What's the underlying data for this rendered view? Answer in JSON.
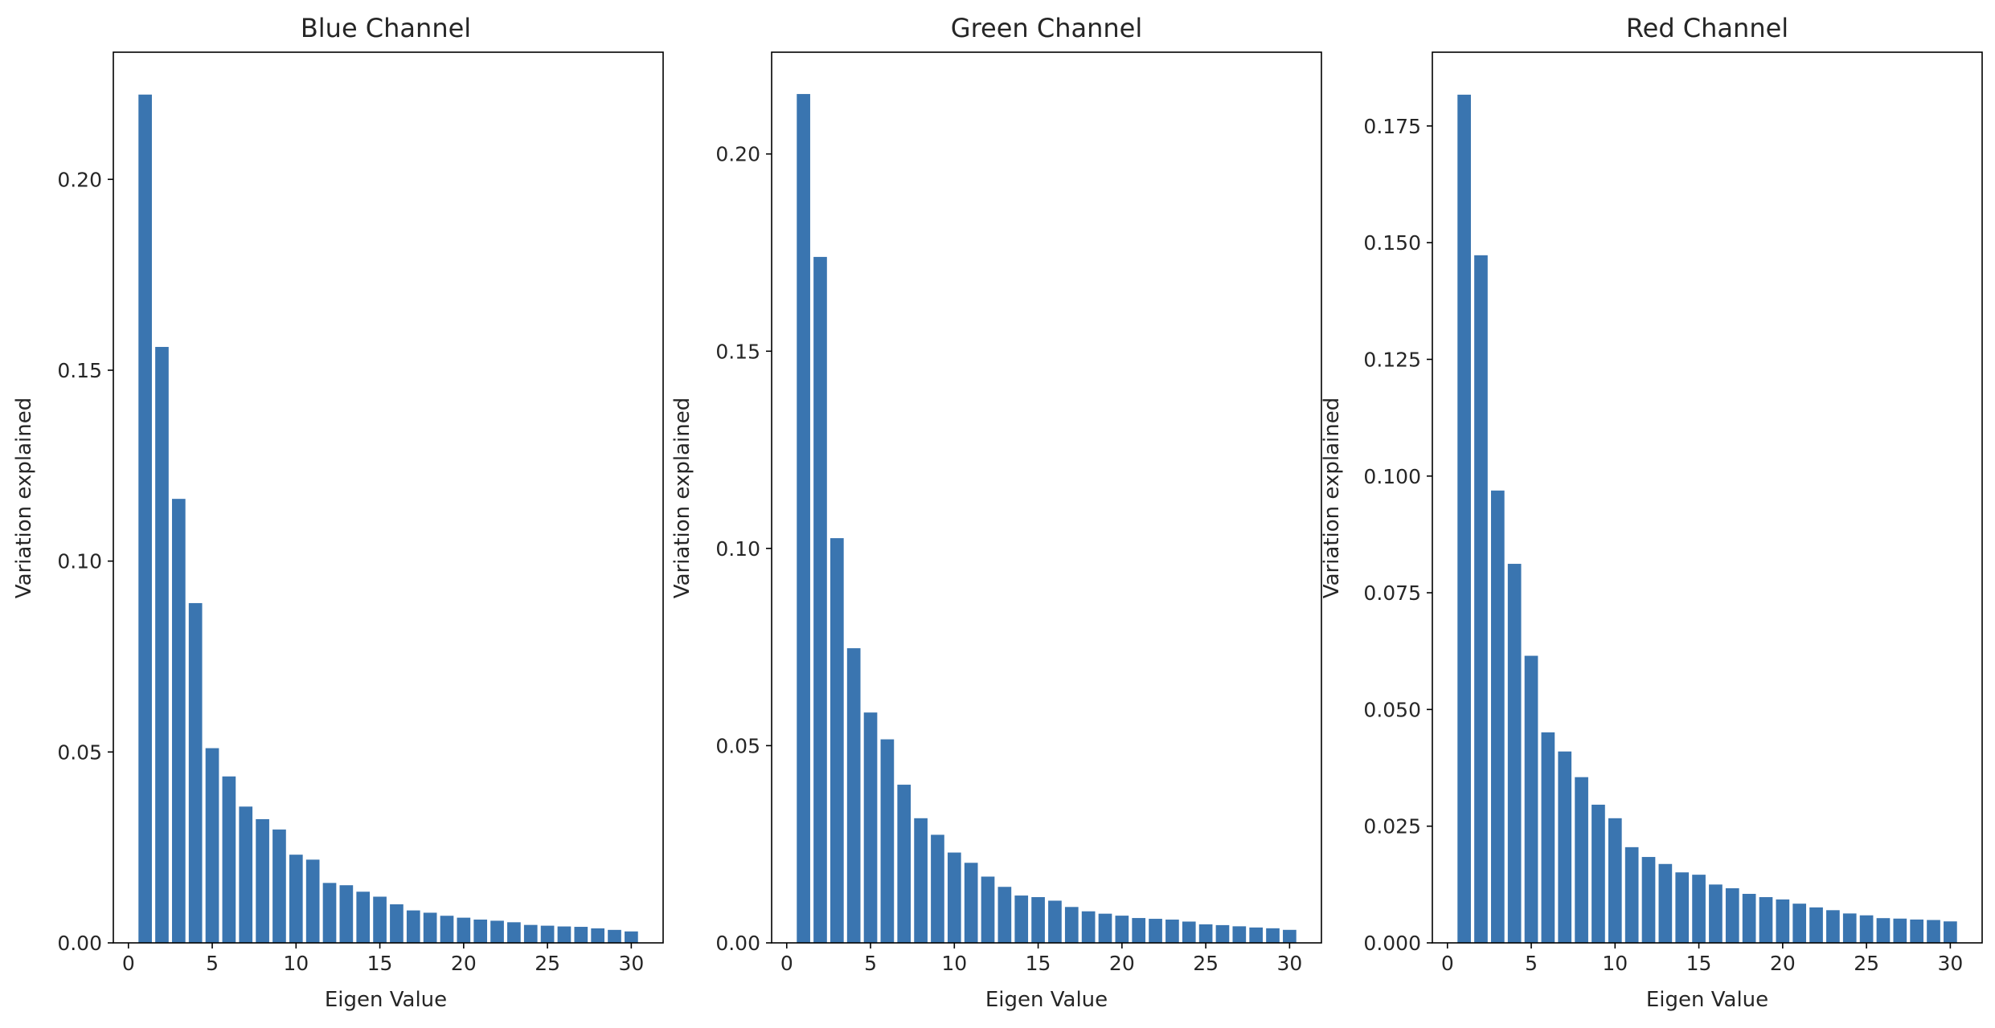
{
  "chart_data": [
    {
      "type": "bar",
      "title": "Blue Channel",
      "xlabel": "Eigen Value",
      "ylabel": "Variation explained",
      "color": "#3a75b0",
      "xlim": [
        -0.9,
        31.9
      ],
      "ylim": [
        0,
        0.2333
      ],
      "xticks": [
        0,
        5,
        10,
        15,
        20,
        25,
        30
      ],
      "xtick_labels": [
        "0",
        "5",
        "10",
        "15",
        "20",
        "25",
        "30"
      ],
      "yticks": [
        0,
        0.05,
        0.1,
        0.15,
        0.2
      ],
      "ytick_labels": [
        "0.00",
        "0.05",
        "0.10",
        "0.15",
        "0.20"
      ],
      "categories": [
        1,
        2,
        3,
        4,
        5,
        6,
        7,
        8,
        9,
        10,
        11,
        12,
        13,
        14,
        15,
        16,
        17,
        18,
        19,
        20,
        21,
        22,
        23,
        24,
        25,
        26,
        27,
        28,
        29,
        30
      ],
      "values": [
        0.2222,
        0.1561,
        0.1163,
        0.089,
        0.051,
        0.0436,
        0.0357,
        0.0324,
        0.0297,
        0.0231,
        0.0218,
        0.0157,
        0.0151,
        0.0134,
        0.0121,
        0.0101,
        0.0085,
        0.0079,
        0.0071,
        0.0066,
        0.0061,
        0.0058,
        0.0054,
        0.0047,
        0.0045,
        0.0043,
        0.0042,
        0.0038,
        0.0034,
        0.003
      ]
    },
    {
      "type": "bar",
      "title": "Green Channel",
      "xlabel": "Eigen Value",
      "ylabel": "Variation explained",
      "color": "#3a75b0",
      "xlim": [
        -0.9,
        31.9
      ],
      "ylim": [
        0,
        0.2258
      ],
      "xticks": [
        0,
        5,
        10,
        15,
        20,
        25,
        30
      ],
      "xtick_labels": [
        "0",
        "5",
        "10",
        "15",
        "20",
        "25",
        "30"
      ],
      "yticks": [
        0,
        0.05,
        0.1,
        0.15,
        0.2
      ],
      "ytick_labels": [
        "0.00",
        "0.05",
        "0.10",
        "0.15",
        "0.20"
      ],
      "categories": [
        1,
        2,
        3,
        4,
        5,
        6,
        7,
        8,
        9,
        10,
        11,
        12,
        13,
        14,
        15,
        16,
        17,
        18,
        19,
        20,
        21,
        22,
        23,
        24,
        25,
        26,
        27,
        28,
        29,
        30
      ],
      "values": [
        0.2152,
        0.1739,
        0.1026,
        0.0747,
        0.0584,
        0.0516,
        0.0401,
        0.0316,
        0.0274,
        0.0229,
        0.0203,
        0.0168,
        0.0142,
        0.012,
        0.0116,
        0.0107,
        0.0091,
        0.008,
        0.0074,
        0.0069,
        0.0063,
        0.0061,
        0.0059,
        0.0054,
        0.0047,
        0.0045,
        0.0042,
        0.0039,
        0.0037,
        0.0033
      ]
    },
    {
      "type": "bar",
      "title": "Red Channel",
      "xlabel": "Eigen Value",
      "ylabel": "Variation explained",
      "color": "#3a75b0",
      "xlim": [
        -0.9,
        31.9
      ],
      "ylim": [
        0,
        0.1908
      ],
      "xticks": [
        0,
        5,
        10,
        15,
        20,
        25,
        30
      ],
      "xtick_labels": [
        "0",
        "5",
        "10",
        "15",
        "20",
        "25",
        "30"
      ],
      "yticks": [
        0,
        0.025,
        0.05,
        0.075,
        0.1,
        0.125,
        0.15,
        0.175
      ],
      "ytick_labels": [
        "0.000",
        "0.025",
        "0.050",
        "0.075",
        "0.100",
        "0.125",
        "0.150",
        "0.175"
      ],
      "categories": [
        1,
        2,
        3,
        4,
        5,
        6,
        7,
        8,
        9,
        10,
        11,
        12,
        13,
        14,
        15,
        16,
        17,
        18,
        19,
        20,
        21,
        22,
        23,
        24,
        25,
        26,
        27,
        28,
        29,
        30
      ],
      "values": [
        0.1817,
        0.1473,
        0.0969,
        0.0812,
        0.0615,
        0.0451,
        0.041,
        0.0355,
        0.0296,
        0.0267,
        0.0205,
        0.0184,
        0.0169,
        0.0151,
        0.0146,
        0.0125,
        0.0117,
        0.0105,
        0.0098,
        0.0093,
        0.0084,
        0.0076,
        0.007,
        0.0063,
        0.0059,
        0.0053,
        0.0052,
        0.005,
        0.0049,
        0.0046
      ]
    }
  ]
}
